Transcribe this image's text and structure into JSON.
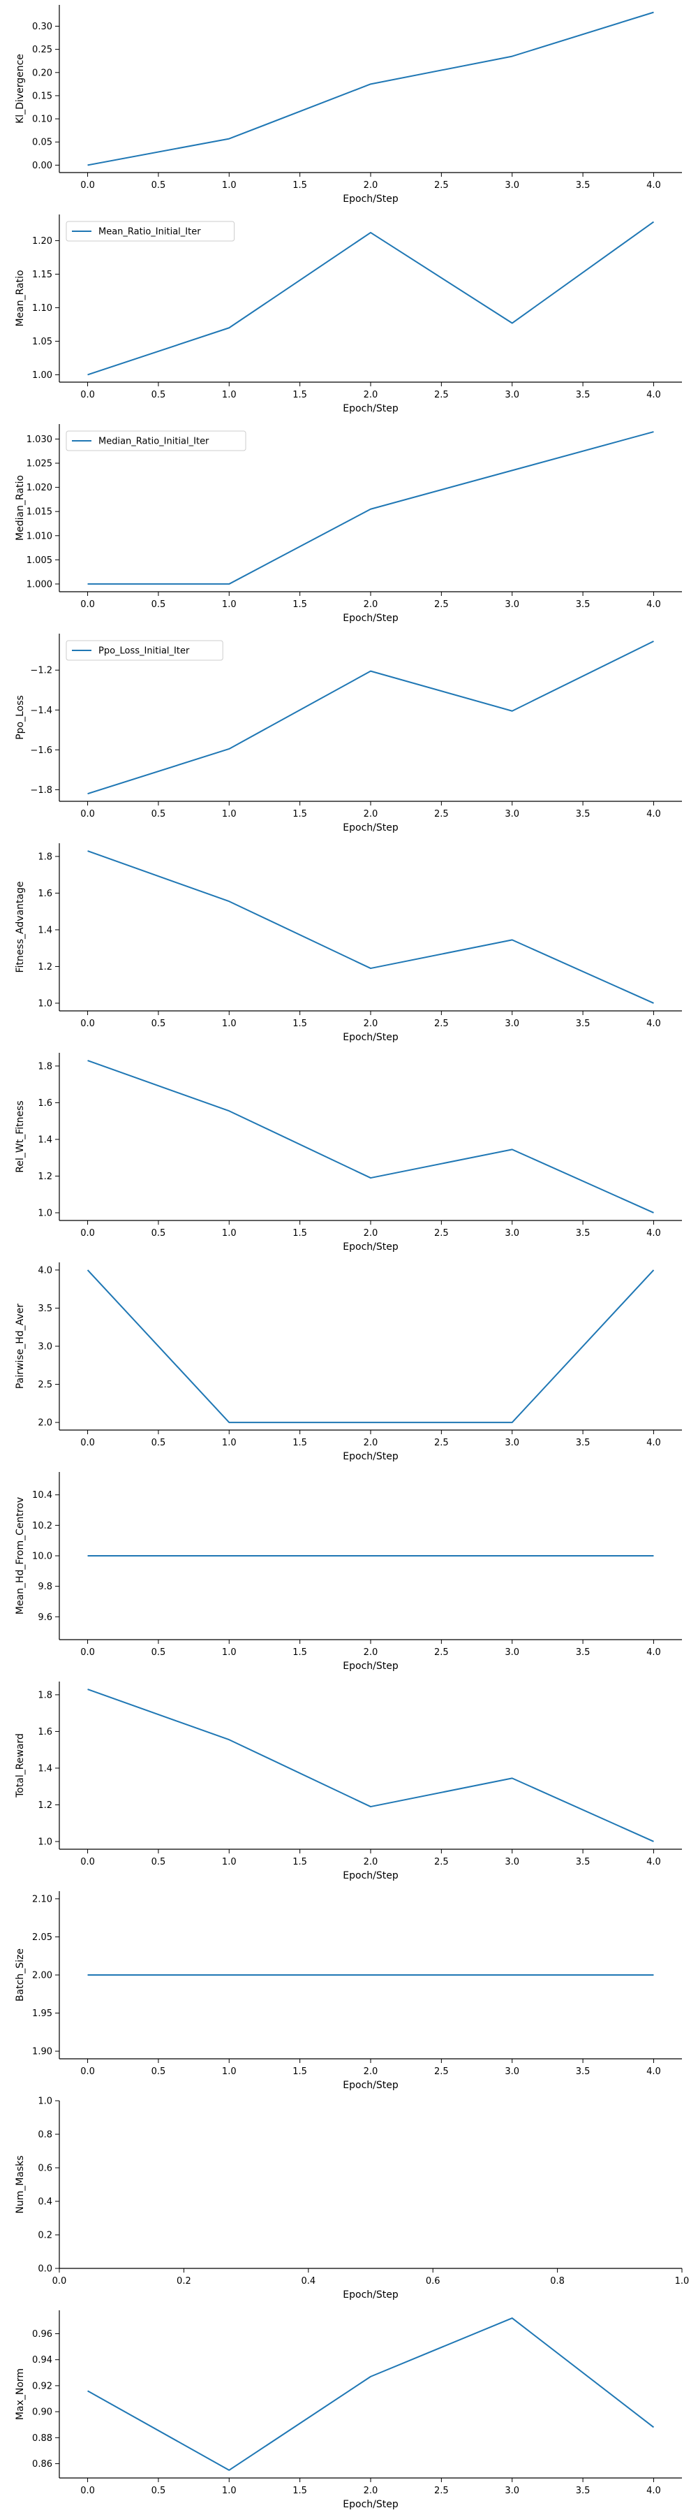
{
  "figure": {
    "accent_color": "#1f77b4"
  },
  "chart_data": [
    {
      "type": "line",
      "xlabel": "Epoch/Step",
      "ylabel": "Kl_Divergence",
      "x": [
        0,
        1,
        2,
        3,
        4
      ],
      "series": [
        {
          "values": [
            0.0,
            0.057,
            0.175,
            0.235,
            0.33
          ],
          "color": "#1f77b4"
        }
      ],
      "xlim": [
        -0.2,
        4.2
      ],
      "ylim": [
        -0.016,
        0.346
      ],
      "xticks": [
        "0.0",
        "0.5",
        "1.0",
        "1.5",
        "2.0",
        "2.5",
        "3.0",
        "3.5",
        "4.0"
      ],
      "yticks": [
        "0.00",
        "0.05",
        "0.10",
        "0.15",
        "0.20",
        "0.25",
        "0.30"
      ],
      "legend": null,
      "grid": false
    },
    {
      "type": "line",
      "xlabel": "Epoch/Step",
      "ylabel": "Mean_Ratio",
      "x": [
        0,
        1,
        2,
        3,
        4
      ],
      "series": [
        {
          "name": "Mean_Ratio_Initial_Iter",
          "values": [
            1.0,
            1.07,
            1.212,
            1.077,
            1.228
          ],
          "color": "#1f77b4"
        }
      ],
      "xlim": [
        -0.2,
        4.2
      ],
      "ylim": [
        0.989,
        1.239
      ],
      "xticks": [
        "0.0",
        "0.5",
        "1.0",
        "1.5",
        "2.0",
        "2.5",
        "3.0",
        "3.5",
        "4.0"
      ],
      "yticks": [
        "1.00",
        "1.05",
        "1.10",
        "1.15",
        "1.20"
      ],
      "legend": "top-left",
      "grid": false
    },
    {
      "type": "line",
      "xlabel": "Epoch/Step",
      "ylabel": "Median_Ratio",
      "x": [
        0,
        1,
        2,
        3,
        4
      ],
      "series": [
        {
          "name": "Median_Ratio_Initial_Iter",
          "values": [
            1.0,
            1.0,
            1.0155,
            1.0235,
            1.0315
          ],
          "color": "#1f77b4"
        }
      ],
      "xlim": [
        -0.2,
        4.2
      ],
      "ylim": [
        0.9984,
        1.0331
      ],
      "xticks": [
        "0.0",
        "0.5",
        "1.0",
        "1.5",
        "2.0",
        "2.5",
        "3.0",
        "3.5",
        "4.0"
      ],
      "yticks": [
        "1.000",
        "1.005",
        "1.010",
        "1.015",
        "1.020",
        "1.025",
        "1.030"
      ],
      "legend": "top-left",
      "grid": false
    },
    {
      "type": "line",
      "xlabel": "Epoch/Step",
      "ylabel": "Ppo_Loss",
      "x": [
        0,
        1,
        2,
        3,
        4
      ],
      "series": [
        {
          "name": "Ppo_Loss_Initial_Iter",
          "values": [
            -1.82,
            -1.595,
            -1.205,
            -1.405,
            -1.055
          ],
          "color": "#1f77b4"
        }
      ],
      "xlim": [
        -0.2,
        4.2
      ],
      "ylim": [
        -1.858,
        -1.017
      ],
      "xticks": [
        "0.0",
        "0.5",
        "1.0",
        "1.5",
        "2.0",
        "2.5",
        "3.0",
        "3.5",
        "4.0"
      ],
      "yticks": [
        "−1.8",
        "−1.6",
        "−1.4",
        "−1.2"
      ],
      "ytick_values": [
        -1.8,
        -1.6,
        -1.4,
        -1.2
      ],
      "legend": "top-left",
      "grid": false
    },
    {
      "type": "line",
      "xlabel": "Epoch/Step",
      "ylabel": "Fitness_Advantage",
      "x": [
        0,
        1,
        2,
        3,
        4
      ],
      "series": [
        {
          "values": [
            1.83,
            1.555,
            1.19,
            1.345,
            1.0
          ],
          "color": "#1f77b4"
        }
      ],
      "xlim": [
        -0.2,
        4.2
      ],
      "ylim": [
        0.958,
        1.872
      ],
      "xticks": [
        "0.0",
        "0.5",
        "1.0",
        "1.5",
        "2.0",
        "2.5",
        "3.0",
        "3.5",
        "4.0"
      ],
      "yticks": [
        "1.0",
        "1.2",
        "1.4",
        "1.6",
        "1.8"
      ],
      "legend": null,
      "grid": false
    },
    {
      "type": "line",
      "xlabel": "Epoch/Step",
      "ylabel": "Rel_Wt_Fitness",
      "x": [
        0,
        1,
        2,
        3,
        4
      ],
      "series": [
        {
          "values": [
            1.83,
            1.555,
            1.19,
            1.345,
            1.0
          ],
          "color": "#1f77b4"
        }
      ],
      "xlim": [
        -0.2,
        4.2
      ],
      "ylim": [
        0.958,
        1.872
      ],
      "xticks": [
        "0.0",
        "0.5",
        "1.0",
        "1.5",
        "2.0",
        "2.5",
        "3.0",
        "3.5",
        "4.0"
      ],
      "yticks": [
        "1.0",
        "1.2",
        "1.4",
        "1.6",
        "1.8"
      ],
      "legend": null,
      "grid": false
    },
    {
      "type": "line",
      "xlabel": "Epoch/Step",
      "ylabel": "Pairwise_Hd_Aver",
      "x": [
        0,
        1,
        2,
        3,
        4
      ],
      "series": [
        {
          "values": [
            4.0,
            2.0,
            2.0,
            2.0,
            4.0
          ],
          "color": "#1f77b4"
        }
      ],
      "xlim": [
        -0.2,
        4.2
      ],
      "ylim": [
        1.9,
        4.1
      ],
      "xticks": [
        "0.0",
        "0.5",
        "1.0",
        "1.5",
        "2.0",
        "2.5",
        "3.0",
        "3.5",
        "4.0"
      ],
      "yticks": [
        "2.0",
        "2.5",
        "3.0",
        "3.5",
        "4.0"
      ],
      "legend": null,
      "grid": false
    },
    {
      "type": "line",
      "xlabel": "Epoch/Step",
      "ylabel": "Mean_Hd_From_Centrov",
      "x": [
        0,
        1,
        2,
        3,
        4
      ],
      "series": [
        {
          "values": [
            10.0,
            10.0,
            10.0,
            10.0,
            10.0
          ],
          "color": "#1f77b4"
        }
      ],
      "xlim": [
        -0.2,
        4.2
      ],
      "ylim": [
        9.45,
        10.55
      ],
      "xticks": [
        "0.0",
        "0.5",
        "1.0",
        "1.5",
        "2.0",
        "2.5",
        "3.0",
        "3.5",
        "4.0"
      ],
      "yticks": [
        "9.6",
        "9.8",
        "10.0",
        "10.2",
        "10.4"
      ],
      "legend": null,
      "grid": false
    },
    {
      "type": "line",
      "xlabel": "Epoch/Step",
      "ylabel": "Total_Reward",
      "x": [
        0,
        1,
        2,
        3,
        4
      ],
      "series": [
        {
          "values": [
            1.83,
            1.555,
            1.19,
            1.345,
            1.0
          ],
          "color": "#1f77b4"
        }
      ],
      "xlim": [
        -0.2,
        4.2
      ],
      "ylim": [
        0.958,
        1.872
      ],
      "xticks": [
        "0.0",
        "0.5",
        "1.0",
        "1.5",
        "2.0",
        "2.5",
        "3.0",
        "3.5",
        "4.0"
      ],
      "yticks": [
        "1.0",
        "1.2",
        "1.4",
        "1.6",
        "1.8"
      ],
      "legend": null,
      "grid": false
    },
    {
      "type": "line",
      "xlabel": "Epoch/Step",
      "ylabel": "Batch_Size",
      "x": [
        0,
        1,
        2,
        3,
        4
      ],
      "series": [
        {
          "values": [
            2.0,
            2.0,
            2.0,
            2.0,
            2.0
          ],
          "color": "#1f77b4"
        }
      ],
      "xlim": [
        -0.2,
        4.2
      ],
      "ylim": [
        1.89,
        2.11
      ],
      "xticks": [
        "0.0",
        "0.5",
        "1.0",
        "1.5",
        "2.0",
        "2.5",
        "3.0",
        "3.5",
        "4.0"
      ],
      "yticks": [
        "1.90",
        "1.95",
        "2.00",
        "2.05",
        "2.10"
      ],
      "legend": null,
      "grid": false
    },
    {
      "type": "line",
      "xlabel": "Epoch/Step",
      "ylabel": "Num_Masks",
      "x": [],
      "series": [],
      "xlim": [
        0,
        1
      ],
      "ylim": [
        0,
        1
      ],
      "xticks": [
        "0.0",
        "0.2",
        "0.4",
        "0.6",
        "0.8",
        "1.0"
      ],
      "yticks": [
        "0.0",
        "0.2",
        "0.4",
        "0.6",
        "0.8",
        "1.0"
      ],
      "legend": null,
      "grid": false
    },
    {
      "type": "line",
      "xlabel": "Epoch/Step",
      "ylabel": "Max_Norm",
      "x": [
        0,
        1,
        2,
        3,
        4
      ],
      "series": [
        {
          "values": [
            0.916,
            0.855,
            0.927,
            0.972,
            0.888
          ],
          "color": "#1f77b4"
        }
      ],
      "xlim": [
        -0.2,
        4.2
      ],
      "ylim": [
        0.849,
        0.978
      ],
      "xticks": [
        "0.0",
        "0.5",
        "1.0",
        "1.5",
        "2.0",
        "2.5",
        "3.0",
        "3.5",
        "4.0"
      ],
      "yticks": [
        "0.86",
        "0.88",
        "0.90",
        "0.92",
        "0.94",
        "0.96"
      ],
      "legend": null,
      "grid": false
    }
  ]
}
